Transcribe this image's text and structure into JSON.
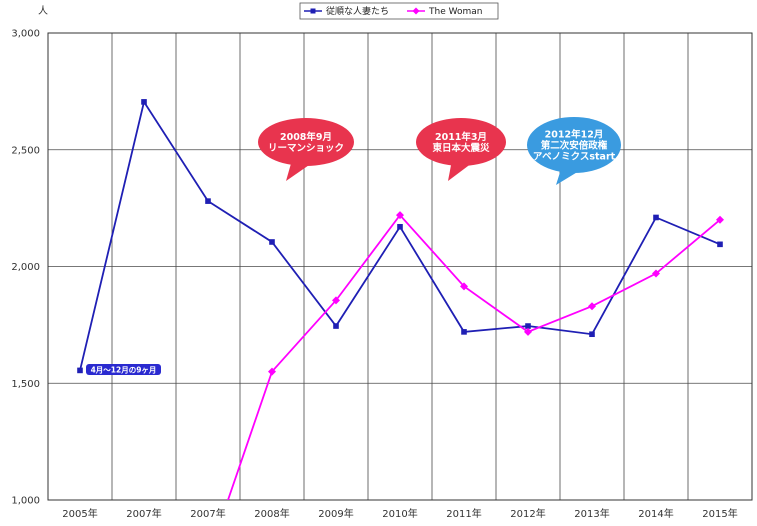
{
  "chart_data": {
    "type": "line",
    "ylabel": "人",
    "categories": [
      "2005年",
      "2007年",
      "2007年",
      "2008年",
      "2009年",
      "2010年",
      "2011年",
      "2012年",
      "2013年",
      "2014年",
      "2015年"
    ],
    "yticks": [
      "1,000",
      "1,500",
      "2,000",
      "2,500",
      "3,000"
    ],
    "ylim": [
      1000,
      3000
    ],
    "grid": true,
    "legend_position": "top",
    "series": [
      {
        "name": "従順な人妻たち",
        "color": "#1f1fb4",
        "marker": "square",
        "values": [
          1555,
          2705,
          2280,
          2105,
          1745,
          2170,
          1720,
          1745,
          1710,
          2210,
          2095
        ]
      },
      {
        "name": "The Woman",
        "color": "#ff00ff",
        "marker": "diamond",
        "values": [
          null,
          null,
          null,
          1550,
          1855,
          2220,
          1915,
          1720,
          1830,
          1970,
          2200
        ],
        "note": "starts below 1,000 at 2007年 (off-axis)"
      }
    ],
    "annotations": [
      {
        "lines": [
          "2008年9月",
          "リーマンショック"
        ],
        "color": "#e8344e"
      },
      {
        "lines": [
          "2011年3月",
          "東日本大震災"
        ],
        "color": "#e8344e"
      },
      {
        "lines": [
          "2012年12月",
          "第二次安倍政権",
          "アベノミクスstart"
        ],
        "color": "#3a9be0"
      }
    ],
    "note_label": {
      "text": "4月～12月の9ヶ月",
      "color": "#2a2ad0"
    }
  }
}
